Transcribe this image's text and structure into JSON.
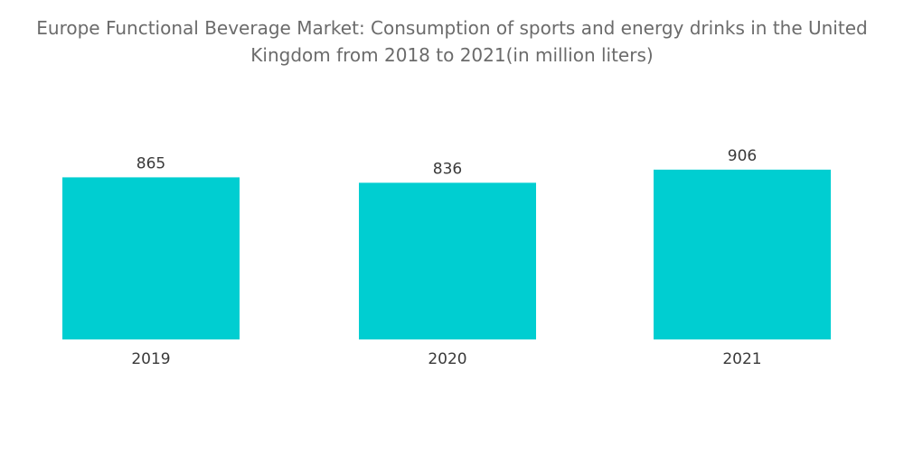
{
  "chart_data": {
    "type": "bar",
    "title": "Europe Functional Beverage Market: Consumption of sports and energy drinks in the United Kingdom from 2018 to 2021(in million liters)",
    "categories": [
      "2019",
      "2020",
      "2021"
    ],
    "values": [
      865,
      836,
      906
    ],
    "xlabel": "",
    "ylabel": "",
    "ylim": [
      0,
      950
    ],
    "grid": false,
    "legend": "none",
    "bar_color": "#00CED1"
  }
}
